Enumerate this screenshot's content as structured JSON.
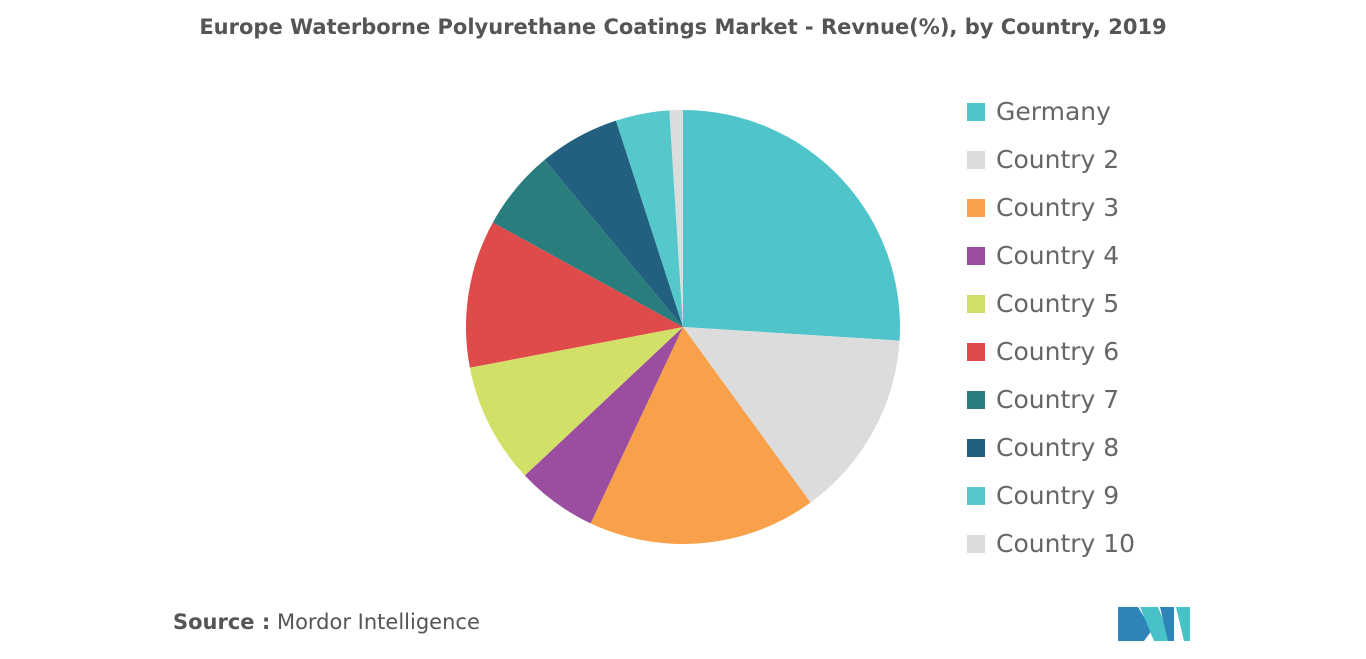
{
  "chart_data": {
    "type": "pie",
    "title": "Europe Waterborne Polyurethane Coatings Market - Revnue(%), by Country, 2019",
    "categories": [
      "Germany",
      "Country 2",
      "Country 3",
      "Country 4",
      "Country 5",
      "Country 6",
      "Country 7",
      "Country 8",
      "Country 9",
      "Country 10"
    ],
    "values": [
      26,
      14,
      17,
      6,
      9,
      11,
      6,
      6,
      4,
      1
    ],
    "colors": [
      "#4fc4cb",
      "#dcdcdc",
      "#f9a04b",
      "#9b4e9f",
      "#d3e067",
      "#df4a4a",
      "#297e7d",
      "#235f7f",
      "#55c8cc",
      "#dcdcdc"
    ]
  },
  "source_label": "Source :",
  "source": "Mordor Intelligence"
}
